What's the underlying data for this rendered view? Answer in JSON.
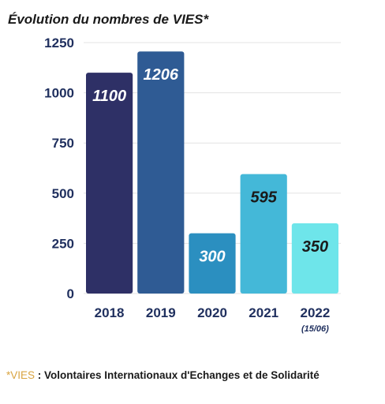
{
  "chart_data": {
    "type": "bar",
    "title": "Évolution du nombres de VIES*",
    "categories": [
      "2018",
      "2019",
      "2020",
      "2021",
      "2022"
    ],
    "category_sublabels": [
      "",
      "",
      "",
      "",
      "(15/06)"
    ],
    "values": [
      1100,
      1206,
      300,
      595,
      350
    ],
    "data_labels": [
      "1100",
      "1206",
      "300",
      "595",
      "350"
    ],
    "bar_colors": [
      "#2e3066",
      "#2f5b94",
      "#2b8fc0",
      "#44b8d8",
      "#6ee5ea"
    ],
    "label_colors": [
      "#ffffff",
      "#ffffff",
      "#ffffff",
      "#1a1a1a",
      "#1a1a1a"
    ],
    "ylim": [
      0,
      1250
    ],
    "yticks": [
      0,
      250,
      500,
      750,
      1000,
      1250
    ],
    "ytick_labels": [
      "0",
      "250",
      "500",
      "750",
      "1000",
      "1250"
    ],
    "grid": true,
    "xlabel": "",
    "ylabel": ""
  },
  "footnote": {
    "marker": "*VIES",
    "text": " : Volontaires Internationaux d'Echanges et de Solidarité"
  }
}
